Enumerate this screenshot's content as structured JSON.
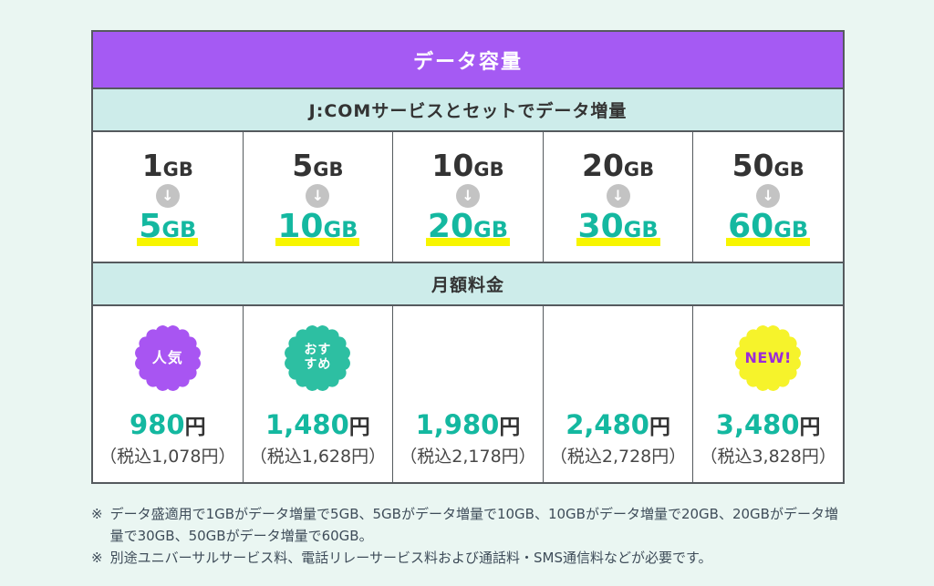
{
  "table": {
    "header": {
      "title": "データ容量"
    },
    "subheader": {
      "label": "J:COMサービスとセットでデータ増量"
    },
    "fee_header": {
      "label": "月額料金"
    },
    "arrow_icon": "↓",
    "plans": [
      {
        "base_value": "1",
        "base_unit": "GB",
        "boost_value": "5",
        "boost_unit": "GB",
        "badge": {
          "label": "人気",
          "color": "#a855f2",
          "text_color": "#ffffff"
        },
        "price_value": "980",
        "price_unit": "円",
        "tax_note": "（税込1,078円）"
      },
      {
        "base_value": "5",
        "base_unit": "GB",
        "boost_value": "10",
        "boost_unit": "GB",
        "badge": {
          "label": "おす\nすめ",
          "color": "#2dbfa2",
          "text_color": "#ffffff"
        },
        "price_value": "1,480",
        "price_unit": "円",
        "tax_note": "（税込1,628円）"
      },
      {
        "base_value": "10",
        "base_unit": "GB",
        "boost_value": "20",
        "boost_unit": "GB",
        "badge": null,
        "price_value": "1,980",
        "price_unit": "円",
        "tax_note": "（税込2,178円）"
      },
      {
        "base_value": "20",
        "base_unit": "GB",
        "boost_value": "30",
        "boost_unit": "GB",
        "badge": null,
        "price_value": "2,480",
        "price_unit": "円",
        "tax_note": "（税込2,728円）"
      },
      {
        "base_value": "50",
        "base_unit": "GB",
        "boost_value": "60",
        "boost_unit": "GB",
        "badge": {
          "label": "NEW!",
          "color": "#f6f32b",
          "text_color": "#9b2bd9"
        },
        "price_value": "3,480",
        "price_unit": "円",
        "tax_note": "（税込3,828円）"
      }
    ]
  },
  "footnotes": [
    {
      "marker": "※",
      "text": "データ盛適用で1GBがデータ増量で5GB、5GBがデータ増量で10GB、10GBがデータ増量で20GB、20GBがデータ増量で30GB、50GBがデータ増量で60GB。"
    },
    {
      "marker": "※",
      "text": "別途ユニバーサルサービス料、電話リレーサービス料および通話料・SMS通信料などが必要です。"
    }
  ],
  "colors": {
    "page_background": "#eaf6f2",
    "header_purple": "#a55af3",
    "band_teal": "#cdecea",
    "accent_green": "#14b8a0",
    "highlight_yellow": "#f7f500",
    "badge_popular_purple": "#a855f2",
    "badge_recommend_teal": "#2dbfa2",
    "badge_new_yellow": "#f6f32b",
    "badge_new_text": "#9b2bd9",
    "border": "#555a5e"
  }
}
